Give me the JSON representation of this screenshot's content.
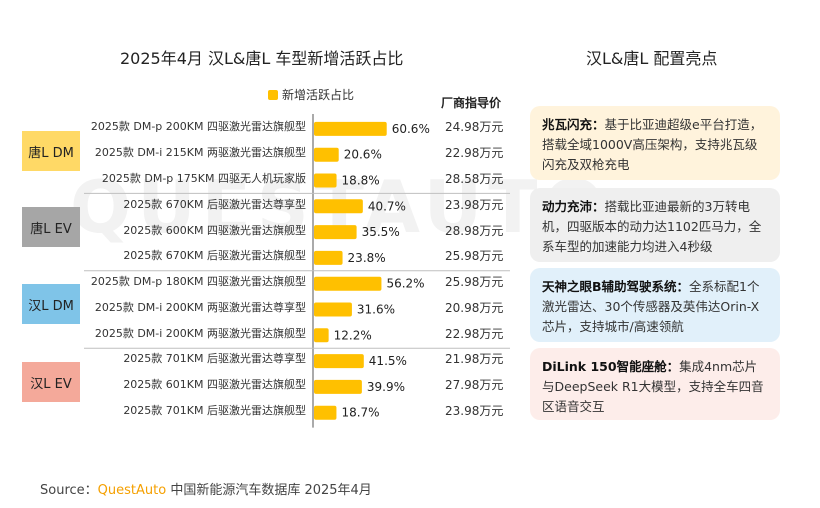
{
  "left_title": "2025年4月 汉L&唐L 车型新增活跃占比",
  "right_title": "汉L&唐L 配置亮点",
  "legend_label": "新增活跃占比",
  "price_header": "厂商指导价",
  "colors": {
    "bar": "#FFC000",
    "tang_dm": "#FFD966",
    "tang_ev": "#A6A6A6",
    "han_dm": "#7FC4E8",
    "han_ev": "#F4A99A"
  },
  "chart_data": {
    "type": "bar",
    "orientation": "horizontal",
    "value_unit": "%",
    "series": [
      {
        "name": "新增活跃占比",
        "values": [
          60.6,
          20.6,
          18.8,
          40.7,
          35.5,
          23.8,
          56.2,
          31.6,
          12.2,
          41.5,
          39.9,
          18.7
        ]
      }
    ],
    "value_labels": [
      "60.6%",
      "20.6%",
      "18.8%",
      "40.7%",
      "35.5%",
      "23.8%",
      "56.2%",
      "31.6%",
      "12.2%",
      "41.5%",
      "39.9%",
      "18.7%"
    ],
    "categories": [
      "2025款 DM-p 200KM 四驱激光雷达旗舰型",
      "2025款 DM-i 215KM 两驱激光雷达旗舰型",
      "2025款 DM-p 175KM 四驱无人机玩家版",
      "2025款 670KM 后驱激光雷达尊享型",
      "2025款 600KM 四驱激光雷达旗舰型",
      "2025款 670KM 后驱激光雷达旗舰型",
      "2025款 DM-p 180KM 四驱激光雷达旗舰型",
      "2025款 DM-i 200KM 两驱激光雷达尊享型",
      "2025款 DM-i 200KM 两驱激光雷达旗舰型",
      "2025款 701KM 后驱激光雷达尊享型",
      "2025款 601KM 四驱激光雷达旗舰型",
      "2025款 701KM 后驱激光雷达旗舰型"
    ],
    "prices": [
      "24.98万元",
      "22.98万元",
      "28.58万元",
      "23.98万元",
      "28.98万元",
      "25.98万元",
      "25.98万元",
      "20.98万元",
      "22.98万元",
      "21.98万元",
      "27.98万元",
      "23.98万元"
    ],
    "groups": [
      {
        "label": "唐L DM",
        "rows": 3
      },
      {
        "label": "唐L EV",
        "rows": 3
      },
      {
        "label": "汉L DM",
        "rows": 3
      },
      {
        "label": "汉L EV",
        "rows": 3
      }
    ],
    "xlim": [
      0,
      100
    ]
  },
  "cards": [
    {
      "title": "兆瓦闪充：",
      "text": "基于比亚迪超级e平台打造，搭载全域1000V高压架构，支持兆瓦级闪充及双枪充电"
    },
    {
      "title": "动力充沛：",
      "text": "搭载比亚迪最新的3万转电机，四驱版本的动力达1102匹马力，全系车型的加速能力均进入4秒级"
    },
    {
      "title": "天神之眼B辅助驾驶系统：",
      "text": "全系标配1个激光雷达、30个传感器及英伟达Orin-X芯片，支持城市/高速领航"
    },
    {
      "title": "DiLink 150智能座舱：",
      "text": "集成4nm芯片与DeepSeek R1大模型，支持全车四音区语音交互"
    }
  ],
  "watermark": "QUESTAUTO",
  "source": {
    "prefix": "Source：",
    "brand": "QuestAuto",
    "rest": " 中国新能源汽车数据库 2025年4月"
  }
}
